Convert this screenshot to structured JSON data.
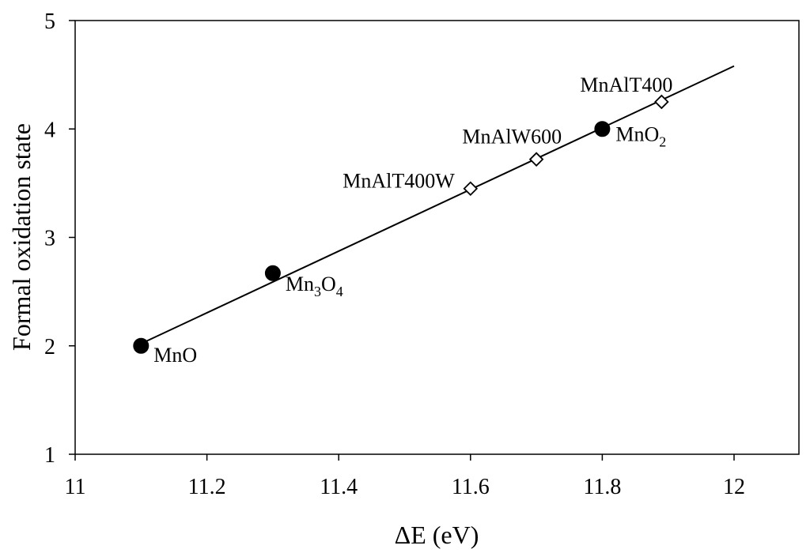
{
  "chart_data": {
    "type": "scatter",
    "xlabel": "ΔE (eV)",
    "ylabel": "Formal oxidation state",
    "xlim": [
      11,
      12.1
    ],
    "ylim": [
      1,
      5
    ],
    "x_ticks": [
      "11",
      "11.2",
      "11.4",
      "11.6",
      "11.8",
      "12"
    ],
    "y_ticks": [
      "1",
      "2",
      "3",
      "4",
      "5"
    ],
    "grid": false,
    "legend": "none",
    "series": [
      {
        "marker": "filled-circle",
        "color": "#000000",
        "points": [
          {
            "x": 11.1,
            "y": 2.0,
            "label": "MnO",
            "sub": ""
          },
          {
            "x": 11.3,
            "y": 2.67,
            "label": "Mn",
            "sub": "3",
            "label2": "O",
            "sub2": "4"
          },
          {
            "x": 11.8,
            "y": 4.0,
            "label": "MnO",
            "sub": "2"
          }
        ]
      },
      {
        "marker": "open-diamond",
        "color": "#000000",
        "points": [
          {
            "x": 11.6,
            "y": 3.45,
            "label": "MnAlT400W"
          },
          {
            "x": 11.7,
            "y": 3.72,
            "label": "MnAlW600"
          },
          {
            "x": 11.89,
            "y": 4.25,
            "label": "MnAlT400"
          }
        ]
      }
    ],
    "fit_line": {
      "x_start": 11.1,
      "y_start": 2.02,
      "x_end": 12.0,
      "y_end": 4.58
    }
  }
}
